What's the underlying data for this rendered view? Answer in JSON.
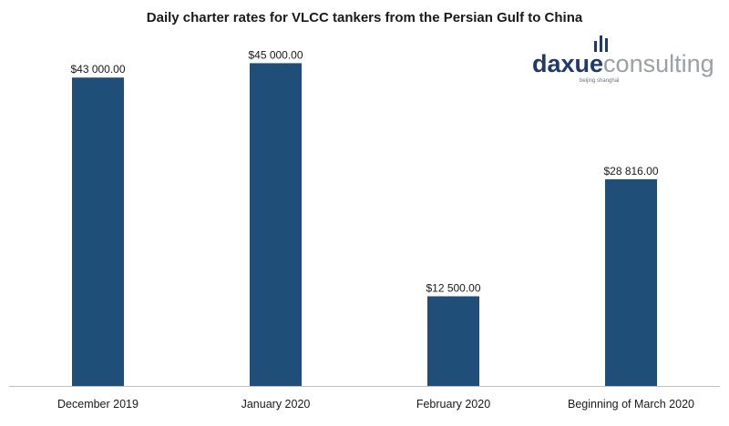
{
  "logo": {
    "brand_part1": "daxue",
    "brand_part2": "consulting",
    "tagline": "beijing shanghai",
    "colors": {
      "part1": "#1f3a68",
      "part2": "#9aa0a6",
      "bars_icon": "#1f3a68"
    }
  },
  "chart_data": {
    "type": "bar",
    "title": "Daily charter rates for VLCC tankers from the Persian Gulf to China",
    "xlabel": "",
    "ylabel": "",
    "categories": [
      "December 2019",
      "January 2020",
      "February 2020",
      "Beginning of March 2020"
    ],
    "values": [
      43000,
      45000,
      12500,
      28816
    ],
    "data_labels": [
      "$43 000.00",
      "$45 000.00",
      "$12 500.00",
      "$28 816.00"
    ],
    "ylim": [
      0,
      50000
    ],
    "grid": false,
    "legend": "none",
    "bar_color": "#1f4e79",
    "axis_color": "#bfbfbf"
  }
}
